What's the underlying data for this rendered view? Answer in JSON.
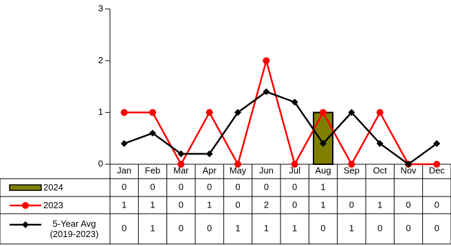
{
  "chart_data": {
    "type": "combo",
    "categories": [
      "Jan",
      "Feb",
      "Mar",
      "Apr",
      "May",
      "Jun",
      "Jul",
      "Aug",
      "Sep",
      "Oct",
      "Nov",
      "Dec"
    ],
    "ylim": [
      0,
      3
    ],
    "yticks": [
      0,
      1,
      2,
      3
    ],
    "series": [
      {
        "name": "2024",
        "type": "bar",
        "color": "#808000",
        "values": [
          0,
          0,
          0,
          0,
          0,
          0,
          0,
          1,
          null,
          null,
          null,
          null
        ]
      },
      {
        "name": "2023",
        "type": "line",
        "marker": "circle",
        "color": "#ff0000",
        "values": [
          1,
          1,
          0,
          1,
          0,
          2,
          0,
          1,
          0,
          1,
          0,
          0
        ]
      },
      {
        "name": "5-Year Avg (2019-2023)",
        "type": "line",
        "marker": "diamond",
        "color": "#000000",
        "values": [
          0.4,
          0.6,
          0.2,
          0.2,
          1.0,
          1.4,
          1.2,
          0.4,
          1.0,
          0.4,
          0.0,
          0.4
        ],
        "value_labels": [
          "0",
          "1",
          "0",
          "0",
          "1",
          "1",
          "1",
          "0",
          "1",
          "0",
          "0",
          "0"
        ]
      }
    ]
  }
}
